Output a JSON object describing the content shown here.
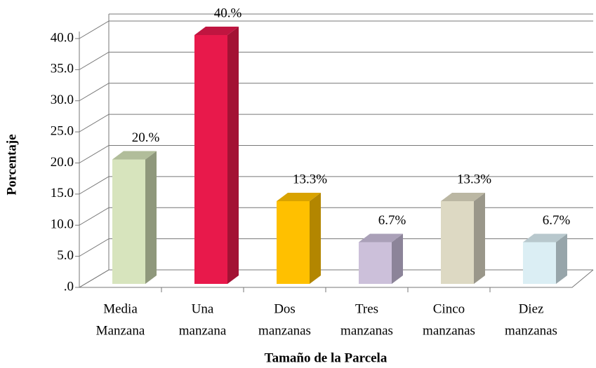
{
  "chart_data": {
    "type": "bar3d",
    "categories": [
      [
        "Media",
        "Manzana"
      ],
      [
        "Una",
        "manzana"
      ],
      [
        "Dos",
        "manzanas"
      ],
      [
        "Tres",
        "manzanas"
      ],
      [
        "Cinco",
        "manzanas"
      ],
      [
        "Diez",
        "manzanas"
      ]
    ],
    "values": [
      20,
      40,
      13.3,
      6.7,
      13.3,
      6.7
    ],
    "value_labels": [
      "20.%",
      "40.%",
      "13.3%",
      "6.7%",
      "13.3%",
      "6.7%"
    ],
    "colors": [
      "#d7e4bd",
      "#e8194b",
      "#ffc000",
      "#ccc0da",
      "#ddd9c3",
      "#dbeef4"
    ],
    "side_colors": [
      "#8f987c",
      "#a31234",
      "#b38600",
      "#8c8499",
      "#9a978a",
      "#97a5aa"
    ],
    "top_colors": [
      "#b1bd9a",
      "#c01540",
      "#d9a300",
      "#aaa0b8",
      "#bbb7a3",
      "#b8c8cd"
    ],
    "ylim": [
      0,
      40
    ],
    "yticks": [
      {
        "value": 0,
        "label": ".0"
      },
      {
        "value": 5,
        "label": "5.0"
      },
      {
        "value": 10,
        "label": "10.0"
      },
      {
        "value": 15,
        "label": "15.0"
      },
      {
        "value": 20,
        "label": "20.0"
      },
      {
        "value": 25,
        "label": "25.0"
      },
      {
        "value": 30,
        "label": "30.0"
      },
      {
        "value": 35,
        "label": "35.0"
      },
      {
        "value": 40,
        "label": "40.0"
      }
    ],
    "grid": true,
    "xlabel": "Tamaño de la Parcela",
    "ylabel": "Porcentaje"
  }
}
